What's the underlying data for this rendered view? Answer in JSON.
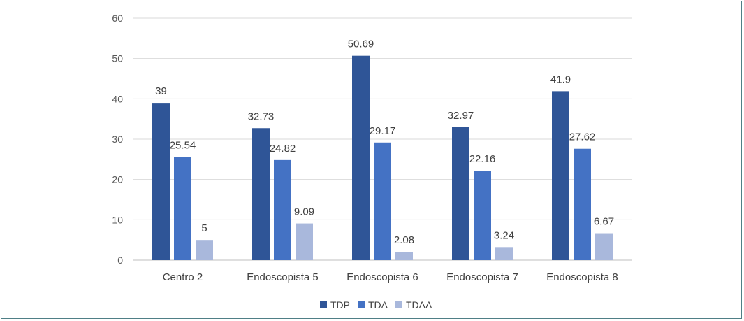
{
  "chart_data": {
    "type": "bar",
    "title": "",
    "xlabel": "",
    "ylabel": "",
    "ylim": [
      0,
      60
    ],
    "yticks": [
      0,
      10,
      20,
      30,
      40,
      50,
      60
    ],
    "grid": true,
    "legend_position": "bottom",
    "categories": [
      "Centro 2",
      "Endoscopista 5",
      "Endoscopista 6",
      "Endoscopista 7",
      "Endoscopista 8"
    ],
    "series": [
      {
        "name": "TDP",
        "color": "#2f5597",
        "values": [
          39,
          32.73,
          50.69,
          32.97,
          41.9
        ]
      },
      {
        "name": "TDA",
        "color": "#4472c4",
        "values": [
          25.54,
          24.82,
          29.17,
          22.16,
          27.62
        ]
      },
      {
        "name": "TDAA",
        "color": "#a9b8dc",
        "values": [
          5,
          9.09,
          2.08,
          3.24,
          6.67
        ]
      }
    ]
  }
}
